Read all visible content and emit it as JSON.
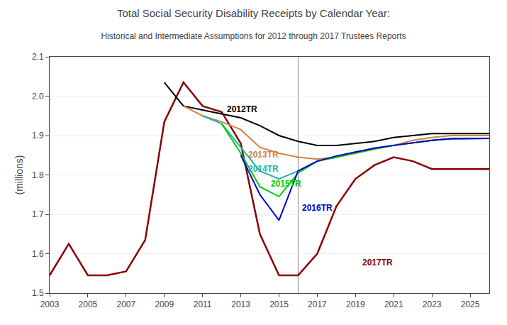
{
  "chart_data": {
    "type": "line",
    "title": "Total Social Security Disability Receipts by Calendar Year:",
    "subtitle": "Historical and Intermediate Assumptions for 2012 through 2017 Trustees Reports",
    "ylabel": "(millions)",
    "xlim": [
      2003,
      2026
    ],
    "ylim": [
      1.5,
      2.1
    ],
    "xticks": [
      2003,
      2005,
      2007,
      2009,
      2011,
      2013,
      2015,
      2017,
      2019,
      2021,
      2023,
      2025
    ],
    "yticks": [
      1.5,
      1.6,
      1.7,
      1.8,
      1.9,
      {
        "value": 2.0,
        "label": "2.0"
      },
      2.1
    ],
    "grid": "y",
    "vline": 2016,
    "series": [
      {
        "name": "2017TR",
        "color": "#8B0000",
        "x": [
          2003,
          2004,
          2005,
          2006,
          2007,
          2008,
          2009,
          2010,
          2011,
          2012,
          2013,
          2014,
          2015,
          2016,
          2017,
          2018,
          2019,
          2020,
          2021,
          2022,
          2023,
          2024,
          2025,
          2026
        ],
        "values": [
          1.545,
          1.625,
          1.545,
          1.545,
          1.555,
          1.635,
          1.935,
          2.035,
          1.975,
          1.96,
          1.88,
          1.65,
          1.545,
          1.545,
          1.6,
          1.72,
          1.79,
          1.825,
          1.845,
          1.835,
          1.815,
          1.815,
          1.815,
          1.815
        ]
      },
      {
        "name": "2012TR",
        "color": "#000000",
        "x": [
          2009,
          2010,
          2011,
          2012,
          2013,
          2014,
          2015,
          2016,
          2017,
          2018,
          2019,
          2020,
          2021,
          2022,
          2023,
          2024,
          2025,
          2026
        ],
        "values": [
          2.035,
          1.975,
          1.965,
          1.955,
          1.945,
          1.925,
          1.9,
          1.885,
          1.875,
          1.875,
          1.88,
          1.885,
          1.895,
          1.9,
          1.905,
          1.905,
          1.905,
          1.905
        ]
      },
      {
        "name": "2013TR",
        "color": "#CD853F",
        "x": [
          2010,
          2011,
          2012,
          2013,
          2014,
          2015,
          2016,
          2017,
          2018,
          2019,
          2020,
          2021,
          2022,
          2023,
          2024,
          2025,
          2026
        ],
        "values": [
          1.975,
          1.95,
          1.935,
          1.915,
          1.87,
          1.855,
          1.845,
          1.84,
          1.845,
          1.855,
          1.865,
          1.875,
          1.888,
          1.895,
          1.9,
          1.9,
          1.9
        ]
      },
      {
        "name": "2014TR",
        "color": "#20B2AA",
        "x": [
          2011,
          2012,
          2013,
          2014,
          2015,
          2016,
          2017,
          2018,
          2019,
          2020,
          2021,
          2022,
          2023,
          2024,
          2025,
          2026
        ],
        "values": [
          1.95,
          1.93,
          1.87,
          1.81,
          1.79,
          1.81,
          1.835,
          1.845,
          1.858,
          1.868,
          1.875,
          1.882,
          1.888,
          1.892,
          1.893,
          1.893
        ]
      },
      {
        "name": "2015TR",
        "color": "#00CC00",
        "x": [
          2012,
          2013,
          2014,
          2015,
          2016,
          2017,
          2018,
          2019,
          2020,
          2021,
          2022,
          2023,
          2024,
          2025,
          2026
        ],
        "values": [
          1.93,
          1.855,
          1.77,
          1.745,
          1.805,
          1.835,
          1.845,
          1.856,
          1.866,
          1.875,
          1.882,
          1.888,
          1.892,
          1.893,
          1.893
        ]
      },
      {
        "name": "2016TR",
        "color": "#0000CD",
        "x": [
          2013,
          2014,
          2015,
          2016,
          2017,
          2018,
          2019,
          2020,
          2021,
          2022,
          2023,
          2024,
          2025,
          2026
        ],
        "values": [
          1.85,
          1.75,
          1.685,
          1.81,
          1.835,
          1.848,
          1.858,
          1.868,
          1.875,
          1.882,
          1.888,
          1.892,
          1.893,
          1.893
        ]
      }
    ],
    "annotations": [
      {
        "text": "2012TR",
        "x": 2012.2,
        "y": 1.95,
        "color": "#000000"
      },
      {
        "text": "2013TR",
        "x": 2013.3,
        "y": 1.836,
        "color": "#CD853F"
      },
      {
        "text": "2014TR",
        "x": 2013.3,
        "y": 1.8,
        "color": "#20B2AA"
      },
      {
        "text": "2015TR",
        "x": 2014.5,
        "y": 1.762,
        "color": "#00CC00"
      },
      {
        "text": "2016TR",
        "x": 2016.15,
        "y": 1.7,
        "color": "#0000CD"
      },
      {
        "text": "2017TR",
        "x": 2019.3,
        "y": 1.562,
        "color": "#8B0000"
      }
    ]
  }
}
